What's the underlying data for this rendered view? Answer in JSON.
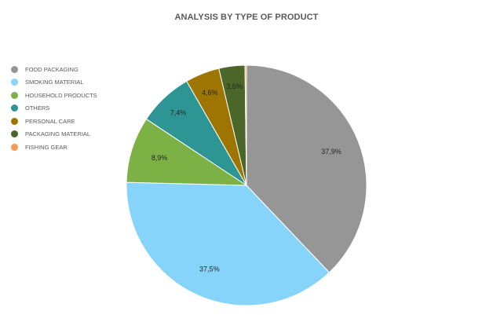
{
  "chart_data": {
    "type": "pie",
    "title": "ANALYSIS BY TYPE OF PRODUCT",
    "legend_position": "left",
    "slices": [
      {
        "name": "FOOD PACKAGING",
        "value": 37.9,
        "label": "37,9%",
        "color": "#969696"
      },
      {
        "name": "SMOKING MATERIAL",
        "value": 37.5,
        "label": "37,5%",
        "color": "#87d4fa"
      },
      {
        "name": "HOUSEHOLD PRODUCTS",
        "value": 8.9,
        "label": "8,9%",
        "color": "#7cb146"
      },
      {
        "name": "OTHERS",
        "value": 7.4,
        "label": "7,4%",
        "color": "#2e9595"
      },
      {
        "name": "PERSONAL CARE",
        "value": 4.6,
        "label": "4,6%",
        "color": "#9e7500"
      },
      {
        "name": "PACKAGING MATERIAL",
        "value": 3.5,
        "label": "3,5%",
        "color": "#4a6628"
      },
      {
        "name": "FISHING GEAR",
        "value": 0.2,
        "label": "",
        "color": "#f39a59"
      }
    ]
  }
}
